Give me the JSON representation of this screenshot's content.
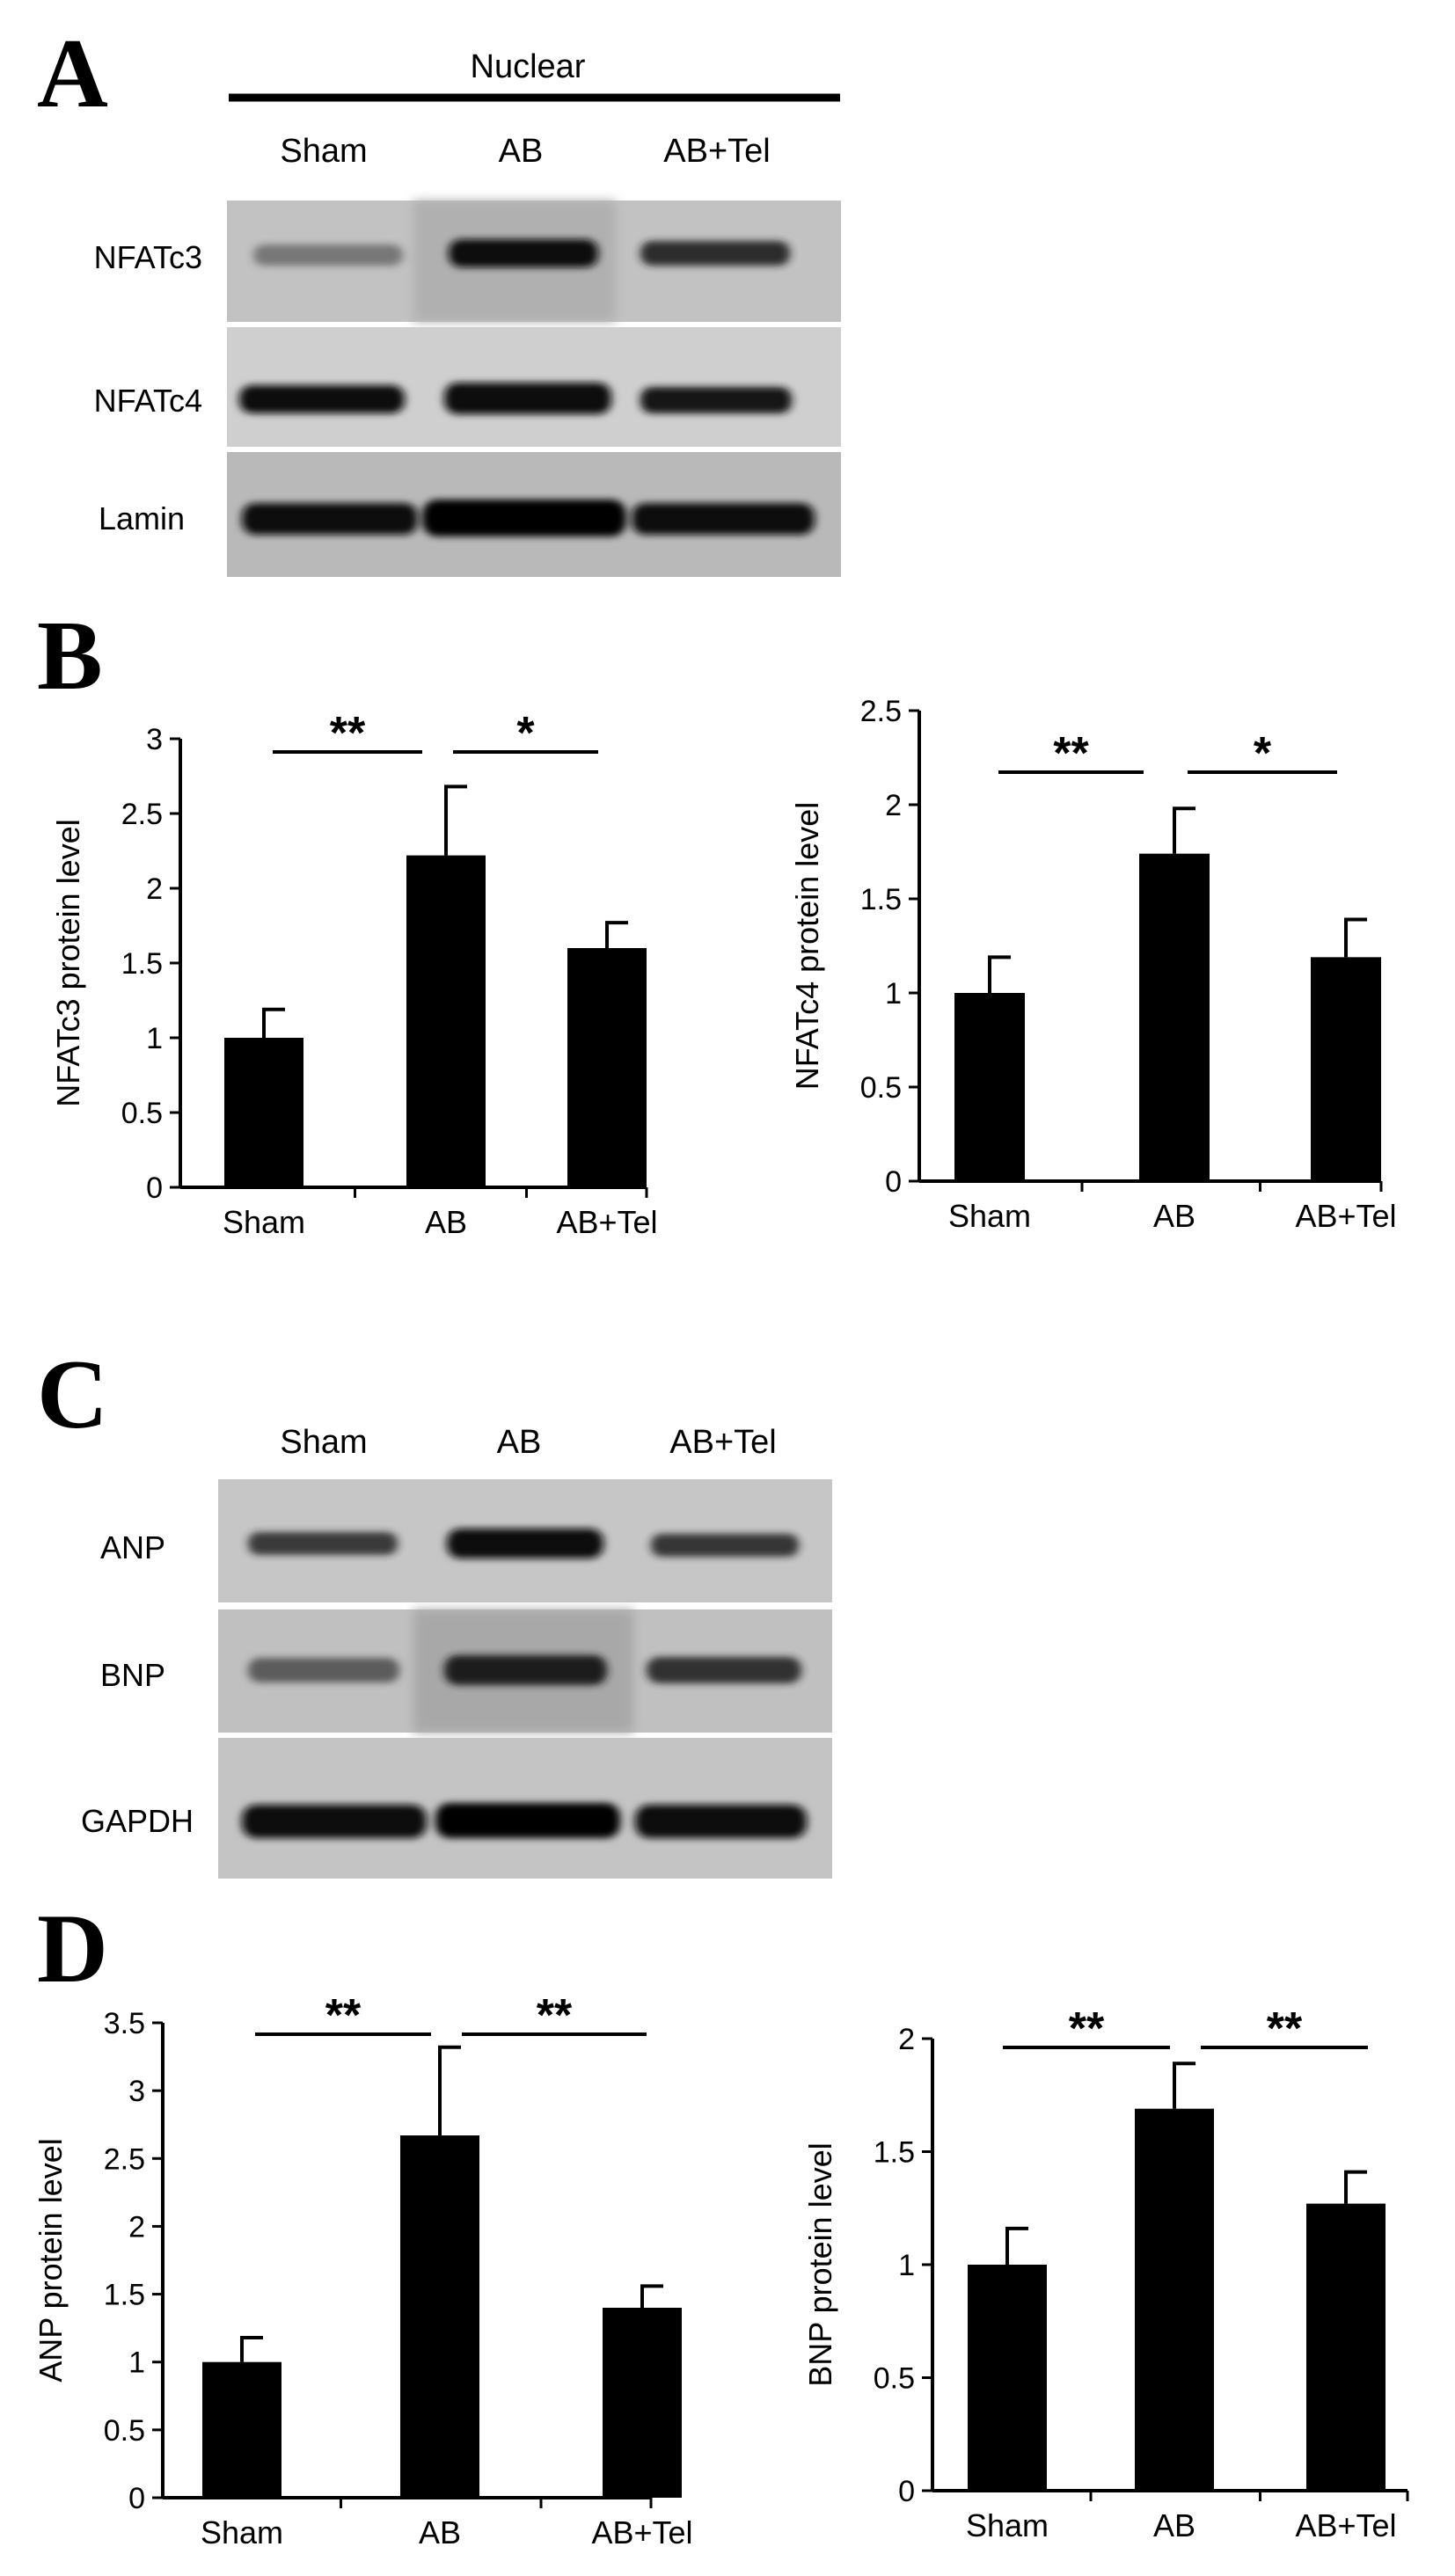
{
  "panels": {
    "A": {
      "letter": "A",
      "header": "Nuclear",
      "lanes": [
        "Sham",
        "AB",
        "AB+Tel"
      ],
      "rows": [
        {
          "label": "NFATc3",
          "intensity": [
            0.55,
            1.0,
            0.85
          ]
        },
        {
          "label": "NFATc4",
          "intensity": [
            0.9,
            1.0,
            0.8
          ]
        },
        {
          "label": "Lamin",
          "intensity": [
            1.0,
            1.0,
            0.9
          ]
        }
      ]
    },
    "B": {
      "letter": "B"
    },
    "C": {
      "letter": "C",
      "lanes": [
        "Sham",
        "AB",
        "AB+Tel"
      ],
      "rows": [
        {
          "label": "ANP",
          "intensity": [
            0.65,
            1.0,
            0.7
          ]
        },
        {
          "label": "BNP",
          "intensity": [
            0.6,
            0.95,
            0.85
          ]
        },
        {
          "label": "GAPDH",
          "intensity": [
            1.0,
            1.0,
            0.95
          ]
        }
      ]
    },
    "D": {
      "letter": "D"
    }
  },
  "chart_data": [
    {
      "type": "bar",
      "panel": "B",
      "categories": [
        "Sham",
        "AB",
        "AB+Tel"
      ],
      "values": [
        1.0,
        2.22,
        1.6
      ],
      "errors": [
        0.19,
        0.46,
        0.17
      ],
      "ylabel": "NFATc3 protein level",
      "ylim": [
        0,
        3
      ],
      "yticks": [
        "0",
        "0.5",
        "1",
        "1.5",
        "2",
        "2.5",
        "3"
      ],
      "significance": [
        {
          "from": 0,
          "to": 1,
          "label": "**"
        },
        {
          "from": 1,
          "to": 2,
          "label": "*"
        }
      ]
    },
    {
      "type": "bar",
      "panel": "B",
      "categories": [
        "Sham",
        "AB",
        "AB+Tel"
      ],
      "values": [
        1.0,
        1.74,
        1.19
      ],
      "errors": [
        0.19,
        0.24,
        0.2
      ],
      "ylabel": "NFATc4 protein level",
      "ylim": [
        0,
        2.5
      ],
      "yticks": [
        "0",
        "0.5",
        "1",
        "1.5",
        "2",
        "2.5"
      ],
      "significance": [
        {
          "from": 0,
          "to": 1,
          "label": "**"
        },
        {
          "from": 1,
          "to": 2,
          "label": "*"
        }
      ]
    },
    {
      "type": "bar",
      "panel": "D",
      "categories": [
        "Sham",
        "AB",
        "AB+Tel"
      ],
      "values": [
        1.0,
        2.67,
        1.4
      ],
      "errors": [
        0.18,
        0.65,
        0.16
      ],
      "ylabel": "ANP protein level",
      "ylim": [
        0,
        3.5
      ],
      "yticks": [
        "0",
        "0.5",
        "1",
        "1.5",
        "2",
        "2.5",
        "3",
        "3.5"
      ],
      "significance": [
        {
          "from": 0,
          "to": 1,
          "label": "**"
        },
        {
          "from": 1,
          "to": 2,
          "label": "**"
        }
      ]
    },
    {
      "type": "bar",
      "panel": "D",
      "categories": [
        "Sham",
        "AB",
        "AB+Tel"
      ],
      "values": [
        1.0,
        1.69,
        1.27
      ],
      "errors": [
        0.16,
        0.2,
        0.14
      ],
      "ylabel": "BNP protein level",
      "ylim": [
        0,
        2
      ],
      "yticks": [
        "0",
        "0.5",
        "1",
        "1.5",
        "2"
      ],
      "significance": [
        {
          "from": 0,
          "to": 1,
          "label": "**"
        },
        {
          "from": 1,
          "to": 2,
          "label": "**"
        }
      ]
    }
  ]
}
